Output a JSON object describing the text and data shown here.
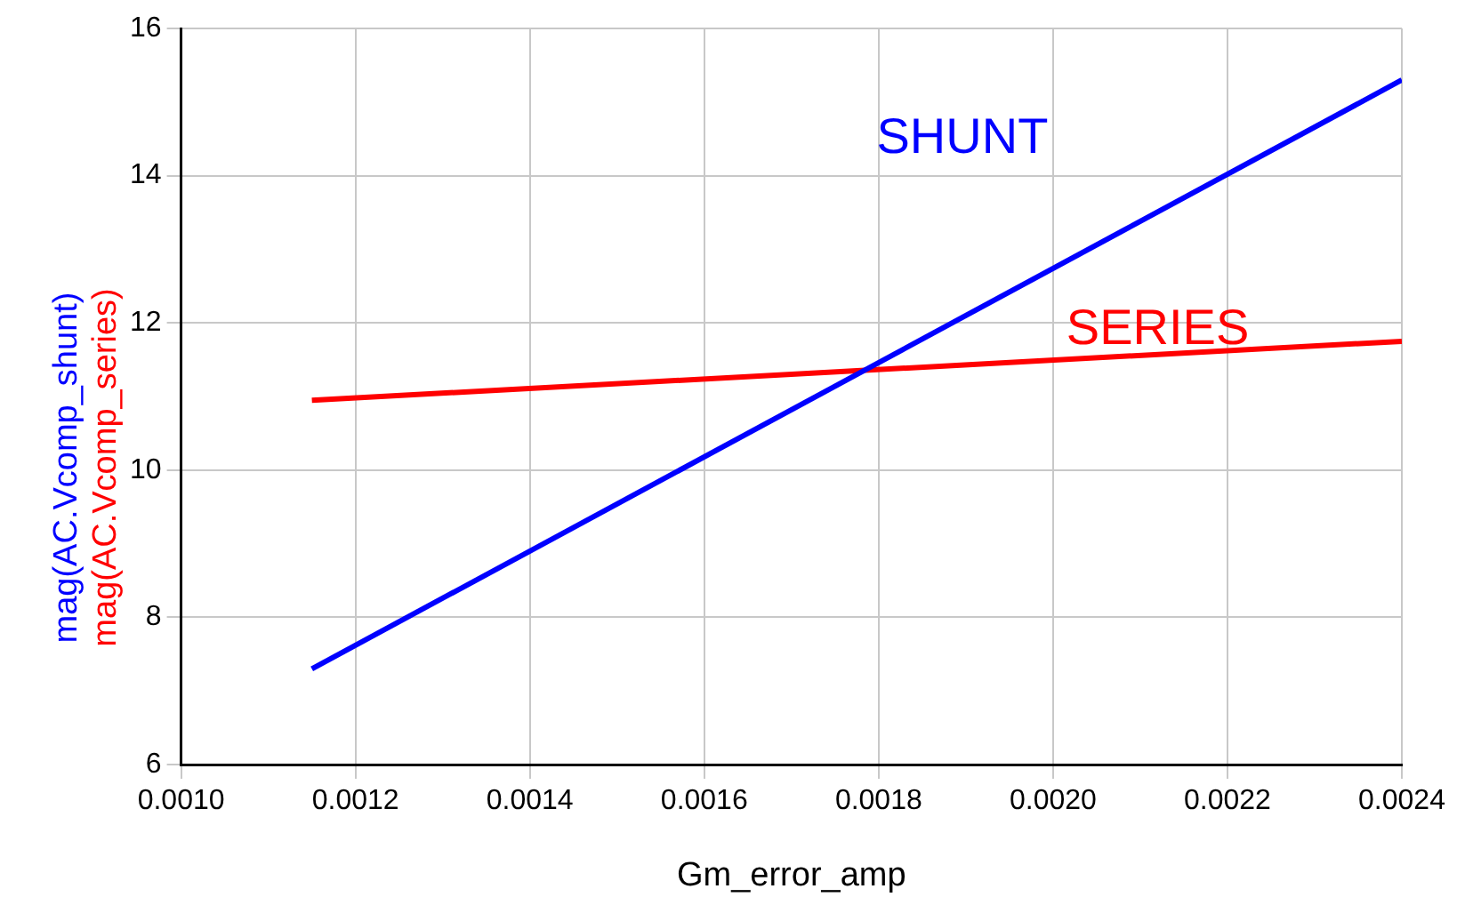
{
  "chart_data": {
    "type": "line",
    "xlabel": "Gm_error_amp",
    "series": [
      {
        "name": "mag(AC.Vcomp_shunt)",
        "color": "#0000ff",
        "values": [
          7.3,
          15.3
        ]
      },
      {
        "name": "mag(AC.Vcomp_series)",
        "color": "#ff0000",
        "values": [
          10.95,
          11.75
        ]
      }
    ],
    "x": [
      0.00115,
      0.0024
    ],
    "annotations": [
      "SHUNT",
      "SERIES"
    ],
    "xlim": [
      0.001,
      0.0024
    ],
    "xticks": [
      {
        "value": 0.001,
        "label": "0.0010"
      },
      {
        "value": 0.0012,
        "label": "0.0012"
      },
      {
        "value": 0.0014,
        "label": "0.0014"
      },
      {
        "value": 0.0016,
        "label": "0.0016"
      },
      {
        "value": 0.0018,
        "label": "0.0018"
      },
      {
        "value": 0.002,
        "label": "0.0020"
      },
      {
        "value": 0.0022,
        "label": "0.0022"
      },
      {
        "value": 0.0024,
        "label": "0.0024"
      }
    ],
    "ylim": [
      6,
      16
    ],
    "yticks": [
      6,
      8,
      10,
      12,
      14,
      16
    ],
    "grid": true,
    "marker": "none",
    "line_style": "solid",
    "legend": false
  }
}
